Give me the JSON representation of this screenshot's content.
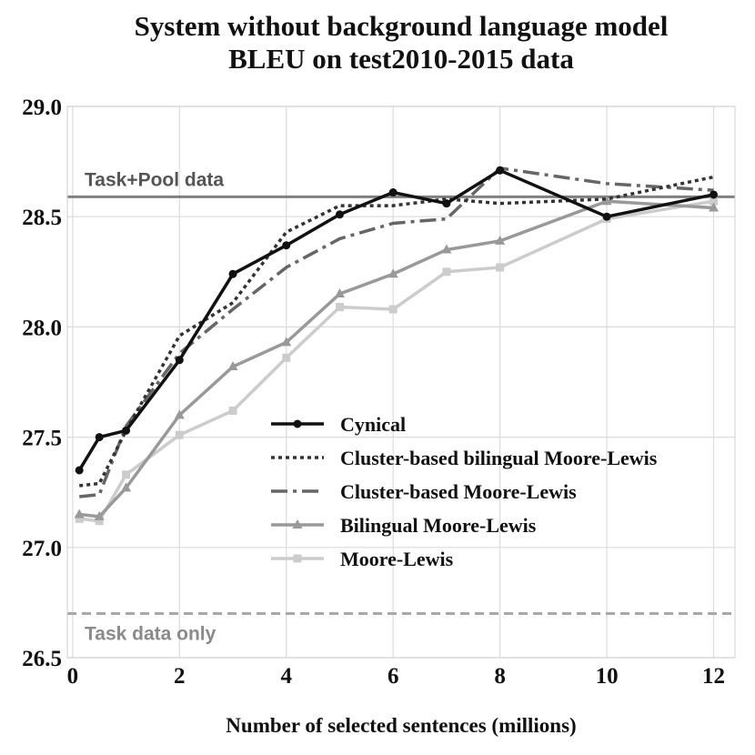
{
  "chart_data": {
    "type": "line",
    "title": [
      "System without background language model",
      "BLEU on test2010-2015 data"
    ],
    "xlabel": "Number of selected sentences (millions)",
    "ylabel": "",
    "xlim": [
      -0.1,
      12.4
    ],
    "ylim": [
      26.5,
      29.0
    ],
    "xticks": [
      0,
      2,
      4,
      6,
      8,
      10,
      12
    ],
    "xtick_labels": [
      "0",
      "2",
      "4",
      "6",
      "8",
      "10",
      "12"
    ],
    "yticks": [
      26.5,
      27.0,
      27.5,
      28.0,
      28.5,
      29.0
    ],
    "ytick_labels": [
      "26.5",
      "27.0",
      "27.5",
      "28.0",
      "28.5",
      "29.0"
    ],
    "grid": true,
    "legend_position": "center-right",
    "reference_lines": [
      {
        "label": "Task+Pool data",
        "y": 28.59,
        "color": "#808080",
        "style": "solid"
      },
      {
        "label": "Task data only",
        "y": 26.7,
        "color": "#a8a8a8",
        "style": "dashed"
      }
    ],
    "series": [
      {
        "name": "Cynical",
        "color": "#111111",
        "style": "solid",
        "marker": "circle",
        "x": [
          0.125,
          0.5,
          1,
          2,
          3,
          4,
          5,
          6,
          7,
          8,
          10,
          12
        ],
        "y": [
          27.35,
          27.5,
          27.53,
          27.85,
          28.24,
          28.37,
          28.51,
          28.61,
          28.56,
          28.71,
          28.5,
          28.6
        ]
      },
      {
        "name": "Cluster-based bilingual Moore-Lewis",
        "color": "#333333",
        "style": "dotted",
        "marker": "none",
        "x": [
          0.125,
          0.5,
          1,
          2,
          3,
          4,
          5,
          6,
          7,
          8,
          10,
          12
        ],
        "y": [
          27.28,
          27.29,
          27.53,
          27.96,
          28.11,
          28.43,
          28.55,
          28.55,
          28.58,
          28.56,
          28.58,
          28.68
        ]
      },
      {
        "name": "Cluster-based Moore-Lewis",
        "color": "#666666",
        "style": "dashdot",
        "marker": "none",
        "x": [
          0.125,
          0.5,
          1,
          2,
          3,
          4,
          5,
          6,
          7,
          8,
          10,
          12
        ],
        "y": [
          27.23,
          27.24,
          27.55,
          27.88,
          28.08,
          28.27,
          28.4,
          28.47,
          28.49,
          28.72,
          28.65,
          28.62
        ]
      },
      {
        "name": "Bilingual Moore-Lewis",
        "color": "#999999",
        "style": "solid",
        "marker": "triangle",
        "x": [
          0.125,
          0.5,
          1,
          2,
          3,
          4,
          5,
          6,
          7,
          8,
          10,
          12
        ],
        "y": [
          27.15,
          27.14,
          27.27,
          27.6,
          27.82,
          27.93,
          28.15,
          28.24,
          28.35,
          28.39,
          28.57,
          28.54
        ]
      },
      {
        "name": "Moore-Lewis",
        "color": "#cccccc",
        "style": "solid",
        "marker": "square",
        "x": [
          0.125,
          0.5,
          1,
          2,
          3,
          4,
          5,
          6,
          7,
          8,
          10,
          12
        ],
        "y": [
          27.13,
          27.12,
          27.33,
          27.51,
          27.62,
          27.86,
          28.09,
          28.08,
          28.25,
          28.27,
          28.49,
          28.57
        ]
      }
    ]
  }
}
